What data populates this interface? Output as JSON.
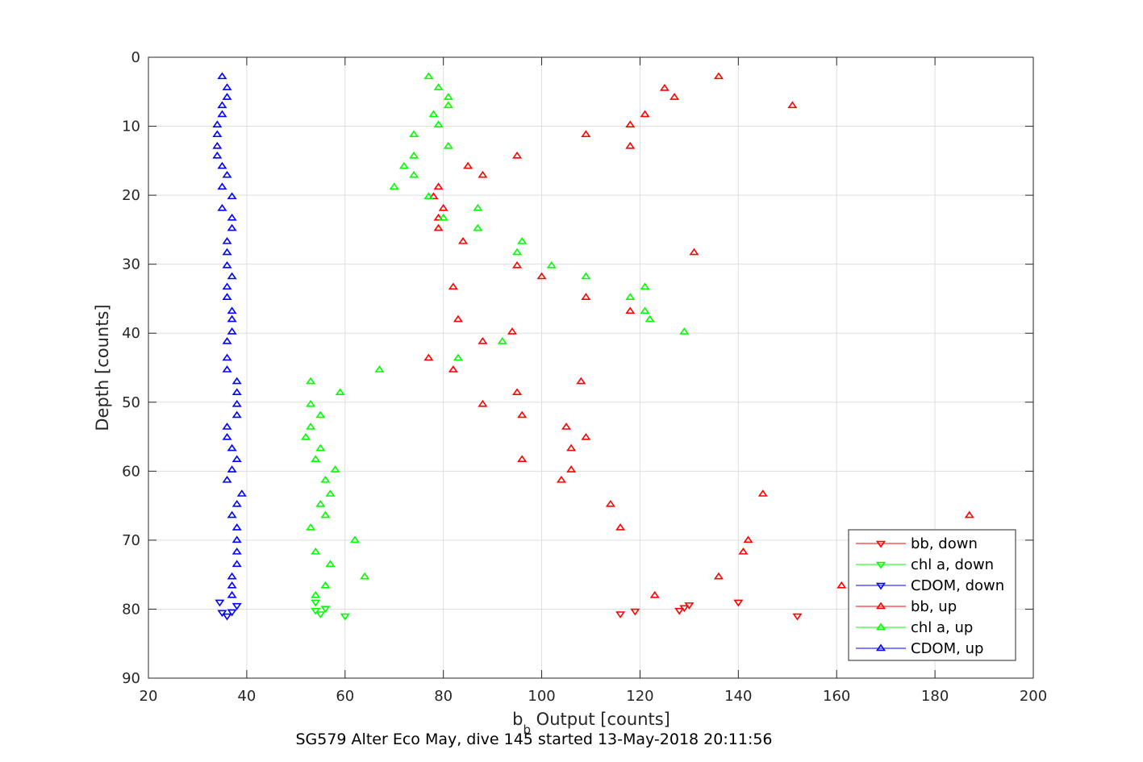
{
  "chart_data": {
    "type": "scatter",
    "title": "",
    "caption": "SG579 Alter Eco May, dive 145 started 13-May-2018 20:11:56",
    "xlabel_main": "b",
    "xlabel_sub": "b",
    "xlabel_rest": " Output [counts]",
    "ylabel": "Depth [counts]",
    "xlim": [
      20,
      200
    ],
    "ylim": [
      0,
      90
    ],
    "y_reversed": true,
    "grid": true,
    "legend_position": "bottom-right",
    "x_ticks": [
      20,
      40,
      60,
      80,
      100,
      120,
      140,
      160,
      180,
      200
    ],
    "y_ticks": [
      0,
      10,
      20,
      30,
      40,
      50,
      60,
      70,
      80,
      90
    ],
    "series": [
      {
        "name": "bb, down",
        "color": "#ff0000",
        "marker": "triangle-down",
        "points": [
          [
            140,
            79
          ],
          [
            152,
            81
          ],
          [
            116,
            80.7
          ],
          [
            119,
            80.3
          ],
          [
            128,
            80.2
          ],
          [
            129,
            79.8
          ],
          [
            130,
            79.4
          ]
        ]
      },
      {
        "name": "chl a, down",
        "color": "#00ff00",
        "marker": "triangle-down",
        "points": [
          [
            54,
            79
          ],
          [
            54,
            80.2
          ],
          [
            55,
            80.7
          ],
          [
            56,
            79.9
          ],
          [
            60,
            81
          ]
        ]
      },
      {
        "name": "CDOM, down",
        "color": "#0000ff",
        "marker": "triangle-down",
        "points": [
          [
            34.5,
            79
          ],
          [
            35,
            80.5
          ],
          [
            36,
            81
          ],
          [
            37,
            80.4
          ],
          [
            38,
            79.5
          ]
        ]
      },
      {
        "name": "bb, up",
        "color": "#ff0000",
        "marker": "triangle-up",
        "points": [
          [
            136,
            2.8
          ],
          [
            125,
            4.5
          ],
          [
            127,
            5.8
          ],
          [
            151,
            7
          ],
          [
            121,
            8.3
          ],
          [
            118,
            9.8
          ],
          [
            109,
            11.2
          ],
          [
            118,
            12.9
          ],
          [
            95,
            14.3
          ],
          [
            85,
            15.8
          ],
          [
            88,
            17.1
          ],
          [
            79,
            18.8
          ],
          [
            78,
            20.2
          ],
          [
            80,
            21.9
          ],
          [
            79,
            23.3
          ],
          [
            79,
            24.8
          ],
          [
            84,
            26.7
          ],
          [
            131,
            28.3
          ],
          [
            95,
            30.2
          ],
          [
            100,
            31.8
          ],
          [
            82,
            33.3
          ],
          [
            109,
            34.8
          ],
          [
            118,
            36.8
          ],
          [
            83,
            38
          ],
          [
            94,
            39.8
          ],
          [
            88,
            41.2
          ],
          [
            77,
            43.6
          ],
          [
            82,
            45.3
          ],
          [
            108,
            47
          ],
          [
            95,
            48.6
          ],
          [
            88,
            50.3
          ],
          [
            96,
            51.9
          ],
          [
            105,
            53.6
          ],
          [
            109,
            55.1
          ],
          [
            106,
            56.7
          ],
          [
            96,
            58.3
          ],
          [
            106,
            59.8
          ],
          [
            104,
            61.3
          ],
          [
            145,
            63.3
          ],
          [
            114,
            64.8
          ],
          [
            187,
            66.4
          ],
          [
            116,
            68.2
          ],
          [
            142,
            70
          ],
          [
            141,
            71.7
          ],
          [
            136,
            75.3
          ],
          [
            161,
            76.6
          ],
          [
            123,
            78
          ]
        ]
      },
      {
        "name": "chl a, up",
        "color": "#00ff00",
        "marker": "triangle-up",
        "points": [
          [
            77,
            2.8
          ],
          [
            79,
            4.4
          ],
          [
            81,
            5.8
          ],
          [
            81,
            7
          ],
          [
            78,
            8.3
          ],
          [
            79,
            9.8
          ],
          [
            74,
            11.2
          ],
          [
            81,
            12.9
          ],
          [
            74,
            14.3
          ],
          [
            72,
            15.8
          ],
          [
            74,
            17.1
          ],
          [
            70,
            18.8
          ],
          [
            77,
            20.2
          ],
          [
            87,
            21.9
          ],
          [
            80,
            23.3
          ],
          [
            87,
            24.8
          ],
          [
            96,
            26.7
          ],
          [
            95,
            28.3
          ],
          [
            102,
            30.2
          ],
          [
            109,
            31.8
          ],
          [
            121,
            33.3
          ],
          [
            118,
            34.8
          ],
          [
            121,
            36.8
          ],
          [
            122,
            38
          ],
          [
            129,
            39.8
          ],
          [
            92,
            41.2
          ],
          [
            83,
            43.6
          ],
          [
            67,
            45.3
          ],
          [
            53,
            47
          ],
          [
            59,
            48.6
          ],
          [
            53,
            50.3
          ],
          [
            55,
            51.9
          ],
          [
            53,
            53.6
          ],
          [
            52,
            55.1
          ],
          [
            55,
            56.7
          ],
          [
            54,
            58.3
          ],
          [
            58,
            59.8
          ],
          [
            56,
            61.3
          ],
          [
            57,
            63.3
          ],
          [
            55,
            64.8
          ],
          [
            56,
            66.4
          ],
          [
            53,
            68.2
          ],
          [
            62,
            70
          ],
          [
            54,
            71.7
          ],
          [
            57,
            73.5
          ],
          [
            64,
            75.3
          ],
          [
            56,
            76.6
          ],
          [
            54,
            78
          ]
        ]
      },
      {
        "name": "CDOM, up",
        "color": "#0000ff",
        "marker": "triangle-up",
        "points": [
          [
            35,
            2.8
          ],
          [
            36,
            4.4
          ],
          [
            36,
            5.8
          ],
          [
            35,
            7
          ],
          [
            35,
            8.3
          ],
          [
            34,
            9.8
          ],
          [
            34,
            11.2
          ],
          [
            34,
            12.9
          ],
          [
            34,
            14.3
          ],
          [
            35,
            15.8
          ],
          [
            36,
            17.1
          ],
          [
            35,
            18.8
          ],
          [
            37,
            20.2
          ],
          [
            35,
            21.9
          ],
          [
            37,
            23.3
          ],
          [
            37,
            24.8
          ],
          [
            36,
            26.7
          ],
          [
            36,
            28.3
          ],
          [
            36,
            30.2
          ],
          [
            37,
            31.8
          ],
          [
            36,
            33.3
          ],
          [
            36,
            34.8
          ],
          [
            37,
            36.8
          ],
          [
            37,
            38
          ],
          [
            37,
            39.8
          ],
          [
            36,
            41.2
          ],
          [
            36,
            43.6
          ],
          [
            36,
            45.3
          ],
          [
            38,
            47
          ],
          [
            38,
            48.6
          ],
          [
            38,
            50.3
          ],
          [
            38,
            51.9
          ],
          [
            36,
            53.6
          ],
          [
            36,
            55.1
          ],
          [
            37,
            56.7
          ],
          [
            38,
            58.3
          ],
          [
            37,
            59.8
          ],
          [
            36,
            61.3
          ],
          [
            39,
            63.3
          ],
          [
            38,
            64.8
          ],
          [
            37,
            66.4
          ],
          [
            38,
            68.2
          ],
          [
            38,
            70
          ],
          [
            38,
            71.7
          ],
          [
            38,
            73.5
          ],
          [
            37,
            75.3
          ],
          [
            37,
            76.6
          ],
          [
            37,
            78
          ]
        ]
      }
    ]
  }
}
